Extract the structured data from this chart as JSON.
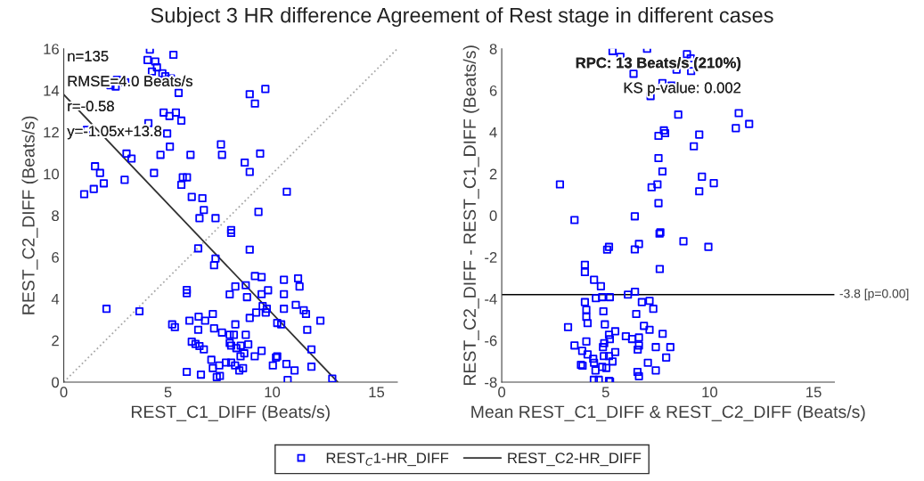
{
  "chart_data": [
    {
      "type": "scatter",
      "title": "Subject 3 HR difference Agreement of Rest stage in different cases",
      "xlabel": "REST_C1_DIFF (Beats/s)",
      "ylabel": "REST_C2_DIFF (Beats/s)",
      "xlim": [
        0,
        16
      ],
      "xticks": [
        0,
        5,
        10,
        15
      ],
      "ylim": [
        0,
        16
      ],
      "yticks": [
        0,
        2,
        4,
        6,
        8,
        10,
        12,
        14,
        16
      ],
      "legend": "bottom",
      "annotations": [
        "n=135",
        "RMSE=4.0 Beats/s",
        "r=-0.58",
        "y=-1.05x+13.8"
      ],
      "series": [
        {
          "name": "REST$_{C}$1-HR_DIFF",
          "marker": "square",
          "color": "#0000ff",
          "x": [
            4.13,
            5.26,
            4.02,
            4.39,
            4.47,
            4.23,
            4.73,
            4.87,
            5.14,
            2.55,
            2.95,
            2.24,
            2.49,
            5.51,
            8.92,
            9.67,
            9.17,
            4.79,
            5.38,
            5.07,
            5.64,
            4.06,
            1.11,
            4.96,
            5.09,
            7.54,
            7.59,
            3.01,
            3.25,
            4.64,
            6.08,
            9.42,
            8.68,
            8.92,
            1.5,
            1.74,
            1.92,
            1.44,
            0.98,
            2.92,
            4.33,
            5.71,
            5.91,
            5.64,
            10.7,
            6.14,
            6.65,
            6.72,
            9.34,
            6.51,
            7.28,
            8.03,
            8.03,
            6.45,
            8.92,
            7.28,
            7.21,
            9.17,
            9.49,
            10.56,
            11.24,
            11.31,
            8.23,
            8.73,
            5.9,
            5.9,
            7.96,
            9.49,
            9.8,
            10.56,
            8.79,
            11.13,
            9.54,
            9.74,
            10.56,
            11.51,
            11.62,
            9.69,
            9.23,
            2.05,
            3.63,
            7.15,
            6.47,
            8.92,
            12.31,
            6.03,
            6.78,
            5.2,
            5.33,
            8.23,
            10.24,
            10.43,
            6.45,
            7.21,
            11.68,
            7.59,
            7.96,
            8.16,
            8.73,
            6.14,
            6.32,
            6.51,
            6.72,
            7.96,
            8.03,
            8.49,
            8.85,
            8.28,
            8.66,
            8.48,
            9.16,
            9.49,
            11.88,
            10.18,
            10.24,
            7.08,
            7.78,
            8.03,
            7.46,
            8.22,
            10.03,
            10.68,
            11.88,
            7.15,
            8.6,
            5.9,
            6.58,
            8.42,
            11.07,
            7.34,
            7.49,
            10.74,
            12.88
          ],
          "values": [
            15.96,
            15.71,
            15.46,
            15.39,
            15.11,
            14.91,
            14.82,
            14.68,
            14.58,
            14.51,
            14.39,
            14.25,
            14.19,
            13.88,
            13.82,
            14.07,
            13.37,
            12.94,
            12.94,
            12.77,
            12.55,
            12.43,
            12.11,
            11.93,
            11.3,
            11.41,
            10.91,
            10.97,
            10.73,
            10.91,
            10.91,
            10.97,
            10.54,
            10.09,
            10.36,
            10.04,
            9.54,
            9.27,
            9.02,
            9.71,
            10.04,
            9.83,
            9.83,
            9.47,
            9.14,
            8.89,
            8.83,
            8.26,
            8.17,
            7.87,
            7.87,
            7.3,
            7.16,
            6.42,
            6.36,
            5.93,
            5.61,
            5.09,
            5.04,
            4.91,
            4.98,
            4.59,
            4.59,
            4.65,
            4.42,
            4.27,
            4.21,
            4.22,
            4.41,
            4.22,
            4.08,
            3.71,
            3.65,
            3.52,
            3.52,
            3.45,
            3.27,
            3.34,
            3.34,
            3.52,
            3.4,
            3.27,
            3.14,
            3.08,
            2.95,
            2.95,
            2.95,
            2.77,
            2.64,
            2.77,
            2.84,
            2.77,
            2.51,
            2.58,
            2.51,
            2.38,
            2.27,
            2.27,
            2.27,
            1.94,
            1.83,
            1.73,
            1.57,
            1.88,
            1.75,
            1.75,
            1.81,
            1.63,
            1.38,
            1.24,
            1.24,
            1.5,
            1.57,
            1.18,
            1.24,
            1.07,
            0.94,
            0.94,
            0.8,
            0.8,
            0.8,
            0.87,
            0.74,
            0.67,
            0.67,
            0.49,
            0.36,
            0.56,
            0.56,
            0.24,
            0.3,
            0.1,
            0.17
          ]
        },
        {
          "name": "REST_C2-HR_DIFF",
          "type": "line",
          "color": "#333333",
          "line_style": "solid",
          "x": [
            0,
            13.14
          ],
          "values": [
            13.8,
            0
          ]
        },
        {
          "type": "line",
          "color": "#aaaaaa",
          "line_style": "dotted",
          "x": [
            0,
            16
          ],
          "values": [
            0,
            16
          ]
        }
      ]
    },
    {
      "type": "scatter",
      "xlabel": "Mean REST_C1_DIFF & REST_C2_DIFF (Beats/s)",
      "ylabel": "REST_C2_DIFF - REST_C1_DIFF (Beats/s)",
      "xlim": [
        0,
        16
      ],
      "xticks": [
        0,
        5,
        10,
        15
      ],
      "ylim": [
        -8,
        8
      ],
      "yticks": [
        -8,
        -6,
        -4,
        -2,
        0,
        2,
        4,
        6,
        8
      ],
      "annotations": [
        "RPC: 13 Beats/s (210%)",
        "KS p-value: 0.002"
      ],
      "ref_lines": [
        {
          "axis": "y",
          "value": -3.8,
          "label": "-3.8 [p=0.00]",
          "color": "#000000",
          "line_style": "solid"
        }
      ],
      "series": [
        {
          "marker": "square",
          "color": "#0000ff",
          "x": [
            5.33,
            5.71,
            6.99,
            8.91,
            9.09,
            6.34,
            8.41,
            9.11,
            7.73,
            8.17,
            7.16,
            8.49,
            11.4,
            11.9,
            11.26,
            7.8,
            7.86,
            7.54,
            9.5,
            9.24,
            7.54,
            7.73,
            9.63,
            10.2,
            2.8,
            7.49,
            7.21,
            9.5,
            7.54,
            6.4,
            3.5,
            7.63,
            7.59,
            8.74,
            9.94,
            5.16,
            5.07,
            6.6,
            6.4,
            4.0,
            4.0,
            7.6,
            4.44,
            4.77,
            6.41,
            6.07,
            4.53,
            4.83,
            5.2,
            4.0,
            6.74,
            7.11,
            4.07,
            4.89,
            7.29,
            6.47,
            4.07,
            4.13,
            4.96,
            3.19,
            6.84,
            7.11,
            5.46,
            5.16,
            5.2,
            5.97,
            6.27,
            6.6,
            7.74,
            4.07,
            3.5,
            4.93,
            4.87,
            6.6,
            6.54,
            7.41,
            8.11,
            3.87,
            5.46,
            4.13,
            4.91,
            5.16,
            4.4,
            7.91,
            5.33,
            4.44,
            7.03,
            3.81,
            3.89,
            4.83,
            5.03,
            4.51,
            6.53,
            7.41,
            6.6,
            4.43,
            4.67,
            5.16,
            5.21
          ],
          "values": [
            7.89,
            7.61,
            8.0,
            7.74,
            7.54,
            6.8,
            7.0,
            6.93,
            6.35,
            6.23,
            5.73,
            4.84,
            4.91,
            4.39,
            4.19,
            4.08,
            3.95,
            3.82,
            3.88,
            3.32,
            2.75,
            2.11,
            1.86,
            1.55,
            1.49,
            1.49,
            1.35,
            1.16,
            0.59,
            -0.04,
            -0.22,
            -0.81,
            -0.87,
            -1.24,
            -1.51,
            -1.51,
            -1.64,
            -1.37,
            -1.63,
            -2.37,
            -2.72,
            -2.57,
            -3.09,
            -3.4,
            -3.66,
            -3.8,
            -3.97,
            -3.92,
            -3.92,
            -4.16,
            -4.16,
            -4.1,
            -4.53,
            -4.6,
            -4.48,
            -4.73,
            -4.87,
            -5.17,
            -5.23,
            -5.36,
            -5.3,
            -5.49,
            -5.56,
            -5.73,
            -5.94,
            -5.8,
            -5.93,
            -5.86,
            -5.68,
            -6.05,
            -6.24,
            -6.13,
            -6.32,
            -6.24,
            -6.44,
            -6.32,
            -6.32,
            -6.5,
            -6.56,
            -6.67,
            -6.75,
            -6.75,
            -6.88,
            -6.82,
            -7.01,
            -7.07,
            -7.07,
            -7.17,
            -7.21,
            -7.27,
            -7.32,
            -7.44,
            -7.51,
            -7.44,
            -7.72,
            -7.89,
            -7.89,
            -7.94,
            -7.97
          ]
        }
      ]
    }
  ]
}
